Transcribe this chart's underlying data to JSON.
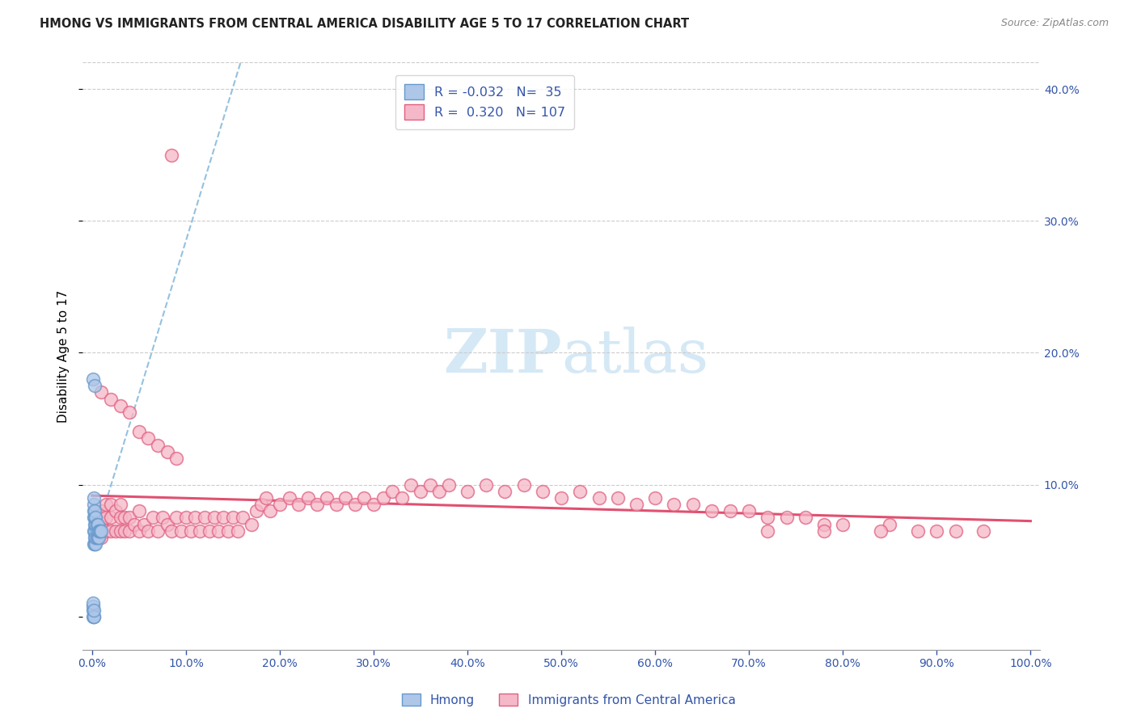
{
  "title": "HMONG VS IMMIGRANTS FROM CENTRAL AMERICA DISABILITY AGE 5 TO 17 CORRELATION CHART",
  "source": "Source: ZipAtlas.com",
  "ylabel": "Disability Age 5 to 17",
  "xlim": [
    -0.01,
    1.01
  ],
  "ylim": [
    -0.025,
    0.42
  ],
  "xticks": [
    0.0,
    0.1,
    0.2,
    0.3,
    0.4,
    0.5,
    0.6,
    0.7,
    0.8,
    0.9,
    1.0
  ],
  "xticklabels": [
    "0.0%",
    "10.0%",
    "20.0%",
    "30.0%",
    "40.0%",
    "50.0%",
    "60.0%",
    "70.0%",
    "80.0%",
    "90.0%",
    "100.0%"
  ],
  "yticks": [
    0.0,
    0.1,
    0.2,
    0.3,
    0.4
  ],
  "yticklabels_right": [
    "",
    "10.0%",
    "20.0%",
    "30.0%",
    "40.0%"
  ],
  "legend_labels": [
    "Hmong",
    "Immigrants from Central America"
  ],
  "r_hmong": "-0.032",
  "n_hmong": "35",
  "r_central": "0.320",
  "n_central": "107",
  "hmong_fill_color": "#aec6e8",
  "hmong_edge_color": "#6699cc",
  "central_fill_color": "#f5b8c8",
  "central_edge_color": "#e06080",
  "hmong_line_color": "#88bbdd",
  "central_line_color": "#e05070",
  "grid_color": "#cccccc",
  "tick_color": "#3355aa",
  "title_color": "#222222",
  "source_color": "#888888",
  "watermark_color": "#d5e8f5",
  "hmong_x": [
    0.001,
    0.001,
    0.001,
    0.001,
    0.002,
    0.002,
    0.002,
    0.002,
    0.002,
    0.002,
    0.003,
    0.003,
    0.003,
    0.003,
    0.003,
    0.003,
    0.004,
    0.004,
    0.004,
    0.004,
    0.005,
    0.005,
    0.005,
    0.006,
    0.006,
    0.007,
    0.007,
    0.008,
    0.009,
    0.01,
    0.001,
    0.002,
    0.002,
    0.002,
    0.003
  ],
  "hmong_y": [
    0.0,
    0.005,
    0.008,
    0.01,
    0.055,
    0.065,
    0.075,
    0.08,
    0.085,
    0.09,
    0.055,
    0.06,
    0.065,
    0.07,
    0.075,
    0.08,
    0.055,
    0.06,
    0.07,
    0.075,
    0.06,
    0.065,
    0.07,
    0.06,
    0.07,
    0.06,
    0.065,
    0.065,
    0.065,
    0.065,
    0.18,
    0.0,
    0.0,
    0.005,
    0.175
  ],
  "central_x": [
    0.01,
    0.01,
    0.01,
    0.01,
    0.015,
    0.015,
    0.015,
    0.02,
    0.02,
    0.02,
    0.025,
    0.025,
    0.03,
    0.03,
    0.03,
    0.035,
    0.035,
    0.04,
    0.04,
    0.045,
    0.05,
    0.05,
    0.055,
    0.06,
    0.065,
    0.07,
    0.075,
    0.08,
    0.085,
    0.09,
    0.095,
    0.1,
    0.105,
    0.11,
    0.115,
    0.12,
    0.125,
    0.13,
    0.135,
    0.14,
    0.145,
    0.15,
    0.155,
    0.16,
    0.17,
    0.175,
    0.18,
    0.185,
    0.19,
    0.2,
    0.21,
    0.22,
    0.23,
    0.24,
    0.25,
    0.26,
    0.27,
    0.28,
    0.29,
    0.3,
    0.31,
    0.32,
    0.33,
    0.34,
    0.35,
    0.36,
    0.37,
    0.38,
    0.4,
    0.42,
    0.44,
    0.46,
    0.48,
    0.5,
    0.52,
    0.54,
    0.56,
    0.58,
    0.6,
    0.62,
    0.64,
    0.66,
    0.68,
    0.7,
    0.72,
    0.74,
    0.76,
    0.78,
    0.8,
    0.85,
    0.9,
    0.95,
    0.92,
    0.88,
    0.84,
    0.78,
    0.72,
    0.01,
    0.02,
    0.03,
    0.04,
    0.05,
    0.06,
    0.07,
    0.08,
    0.085,
    0.09
  ],
  "central_y": [
    0.06,
    0.07,
    0.075,
    0.08,
    0.065,
    0.075,
    0.085,
    0.065,
    0.075,
    0.085,
    0.065,
    0.08,
    0.065,
    0.075,
    0.085,
    0.065,
    0.075,
    0.065,
    0.075,
    0.07,
    0.065,
    0.08,
    0.07,
    0.065,
    0.075,
    0.065,
    0.075,
    0.07,
    0.065,
    0.075,
    0.065,
    0.075,
    0.065,
    0.075,
    0.065,
    0.075,
    0.065,
    0.075,
    0.065,
    0.075,
    0.065,
    0.075,
    0.065,
    0.075,
    0.07,
    0.08,
    0.085,
    0.09,
    0.08,
    0.085,
    0.09,
    0.085,
    0.09,
    0.085,
    0.09,
    0.085,
    0.09,
    0.085,
    0.09,
    0.085,
    0.09,
    0.095,
    0.09,
    0.1,
    0.095,
    0.1,
    0.095,
    0.1,
    0.095,
    0.1,
    0.095,
    0.1,
    0.095,
    0.09,
    0.095,
    0.09,
    0.09,
    0.085,
    0.09,
    0.085,
    0.085,
    0.08,
    0.08,
    0.08,
    0.075,
    0.075,
    0.075,
    0.07,
    0.07,
    0.07,
    0.065,
    0.065,
    0.065,
    0.065,
    0.065,
    0.065,
    0.065,
    0.17,
    0.165,
    0.16,
    0.155,
    0.14,
    0.135,
    0.13,
    0.125,
    0.35,
    0.12
  ]
}
